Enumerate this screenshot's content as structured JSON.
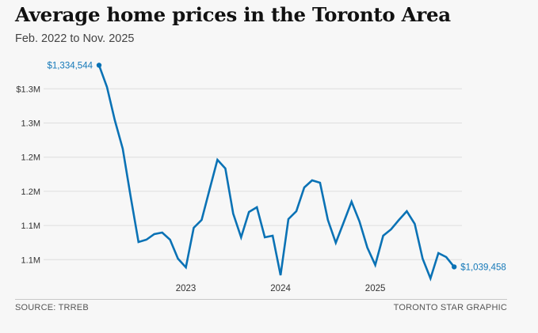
{
  "header": {
    "title": "Average home prices in the Toronto Area",
    "subtitle": "Feb. 2022 to Nov. 2025"
  },
  "footer": {
    "source": "SOURCE: TRREB",
    "credit": "TORONTO STAR GRAPHIC"
  },
  "colors": {
    "line": "#0a72b5",
    "label": "#1478b8",
    "grid": "#dedede",
    "background": "#f7f7f7"
  },
  "chart_data": {
    "type": "line",
    "title": "Average home prices in the Toronto Area",
    "subtitle": "Feb. 2022 to Nov. 2025",
    "xlabel": "",
    "ylabel": "",
    "x_start": "2022-02",
    "x_end": "2025-11",
    "x_ticks": [
      {
        "label": "2023",
        "month": "2023-01"
      },
      {
        "label": "2024",
        "month": "2024-01"
      },
      {
        "label": "2025",
        "month": "2025-01"
      }
    ],
    "y_ticks": [
      {
        "value": 1050000,
        "label": "1.1M"
      },
      {
        "value": 1100000,
        "label": "1.1M"
      },
      {
        "value": 1150000,
        "label": "1.2M"
      },
      {
        "value": 1200000,
        "label": "1.2M"
      },
      {
        "value": 1250000,
        "label": "1.3M"
      },
      {
        "value": 1300000,
        "label": "$1.3M"
      }
    ],
    "ylim": [
      1020000,
      1340000
    ],
    "grid": true,
    "legend": "none",
    "series": [
      {
        "name": "Average home price",
        "x": [
          "2022-02",
          "2022-03",
          "2022-04",
          "2022-05",
          "2022-06",
          "2022-07",
          "2022-08",
          "2022-09",
          "2022-10",
          "2022-11",
          "2022-12",
          "2023-01",
          "2023-02",
          "2023-03",
          "2023-04",
          "2023-05",
          "2023-06",
          "2023-07",
          "2023-08",
          "2023-09",
          "2023-10",
          "2023-11",
          "2023-12",
          "2024-01",
          "2024-02",
          "2024-03",
          "2024-04",
          "2024-05",
          "2024-06",
          "2024-07",
          "2024-08",
          "2024-09",
          "2024-10",
          "2024-11",
          "2024-12",
          "2025-01",
          "2025-02",
          "2025-03",
          "2025-04",
          "2025-05",
          "2025-06",
          "2025-07",
          "2025-08",
          "2025-09",
          "2025-10",
          "2025-11"
        ],
        "values": [
          1334544,
          1302700,
          1254000,
          1212400,
          1142900,
          1075800,
          1079300,
          1087400,
          1089700,
          1079300,
          1051500,
          1038800,
          1096600,
          1108200,
          1152200,
          1196200,
          1183400,
          1117500,
          1082800,
          1119800,
          1126700,
          1082800,
          1085100,
          1027200,
          1109400,
          1121000,
          1155700,
          1166100,
          1162600,
          1108200,
          1074700,
          1104700,
          1134800,
          1105900,
          1067700,
          1042300,
          1085100,
          1094300,
          1108200,
          1121000,
          1102400,
          1051500,
          1022600,
          1059600,
          1053800,
          1039458
        ]
      }
    ],
    "annotations": [
      {
        "point": "first",
        "text": "$1,334,544"
      },
      {
        "point": "last",
        "text": "$1,039,458"
      }
    ]
  }
}
